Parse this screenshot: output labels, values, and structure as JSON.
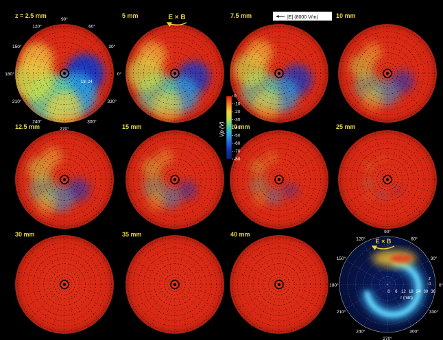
{
  "panels": [
    {
      "label": "z = 2.5 mm",
      "level": 1.0,
      "phase": 0.0
    },
    {
      "label": "5 mm",
      "level": 0.85,
      "phase": 0.3
    },
    {
      "label": "7.5 mm",
      "level": 0.8,
      "phase": 0.5
    },
    {
      "label": "10 mm",
      "level": 0.6,
      "phase": 0.7
    },
    {
      "label": "12.5 mm",
      "level": 0.6,
      "phase": 0.9
    },
    {
      "label": "15 mm",
      "level": 0.5,
      "phase": 1.0
    },
    {
      "label": "20 mm",
      "level": 0.4,
      "phase": 1.1
    },
    {
      "label": "25 mm",
      "level": 0.25,
      "phase": 1.2
    },
    {
      "label": "30 mm",
      "level": 0.12,
      "phase": 1.3
    },
    {
      "label": "35 mm",
      "level": 0.08,
      "phase": 1.3
    },
    {
      "label": "40 mm",
      "level": 0.05,
      "phase": 1.3
    }
  ],
  "first_panel": {
    "angle_labels": [
      "90°",
      "60°",
      "30°",
      "0°",
      "330°",
      "300°",
      "270°",
      "240°",
      "210°",
      "180°",
      "150°",
      "120°"
    ],
    "radial_labels": [
      "18",
      "24"
    ]
  },
  "exb_label": "E × B",
  "arrow_legend": "|E| (8000 V/m)",
  "colorbar": {
    "title": "Vp (V)",
    "ticks": [
      "0",
      "-10",
      "-20",
      "-30",
      "-40",
      "-50",
      "-60",
      "-70",
      "-80"
    ],
    "colors": [
      "#e02010",
      "#f07a20",
      "#f5d040",
      "#b8e050",
      "#40c8b0",
      "#30a0e0",
      "#2060d0",
      "#1030a0",
      "#102070"
    ]
  },
  "polar_inset": {
    "exb_label": "E × B",
    "angle_labels": [
      "90°",
      "60°",
      "30°",
      "0°",
      "330°",
      "300°",
      "270°",
      "240°",
      "210°",
      "180°",
      "150°",
      "120°"
    ],
    "radial_labels": [
      "0",
      "6",
      "12",
      "18",
      "24",
      "30",
      "36"
    ],
    "r_axis_label": "r (mm)",
    "z_axis_label": "z",
    "z_value": "0"
  }
}
